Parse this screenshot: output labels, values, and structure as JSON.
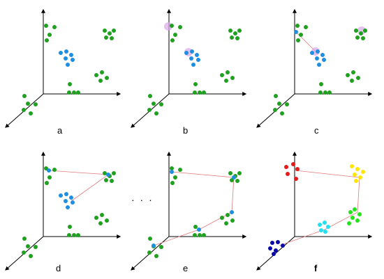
{
  "labels": {
    "a": "a",
    "b": "b",
    "c": "c",
    "d": "d",
    "e": "e",
    "f": "f"
  },
  "ellipsis": "· · ·",
  "colors": {
    "green": "#1fa01f",
    "blue": "#1e8fe0",
    "highlight": "#d9a6e8",
    "link": "#e07a7a",
    "axis": "#000000",
    "red": "#e41a1a",
    "yellow": "#ffe600",
    "lime": "#22e41a",
    "cyan": "#22e0f0",
    "navy": "#0a0aa8"
  }
}
